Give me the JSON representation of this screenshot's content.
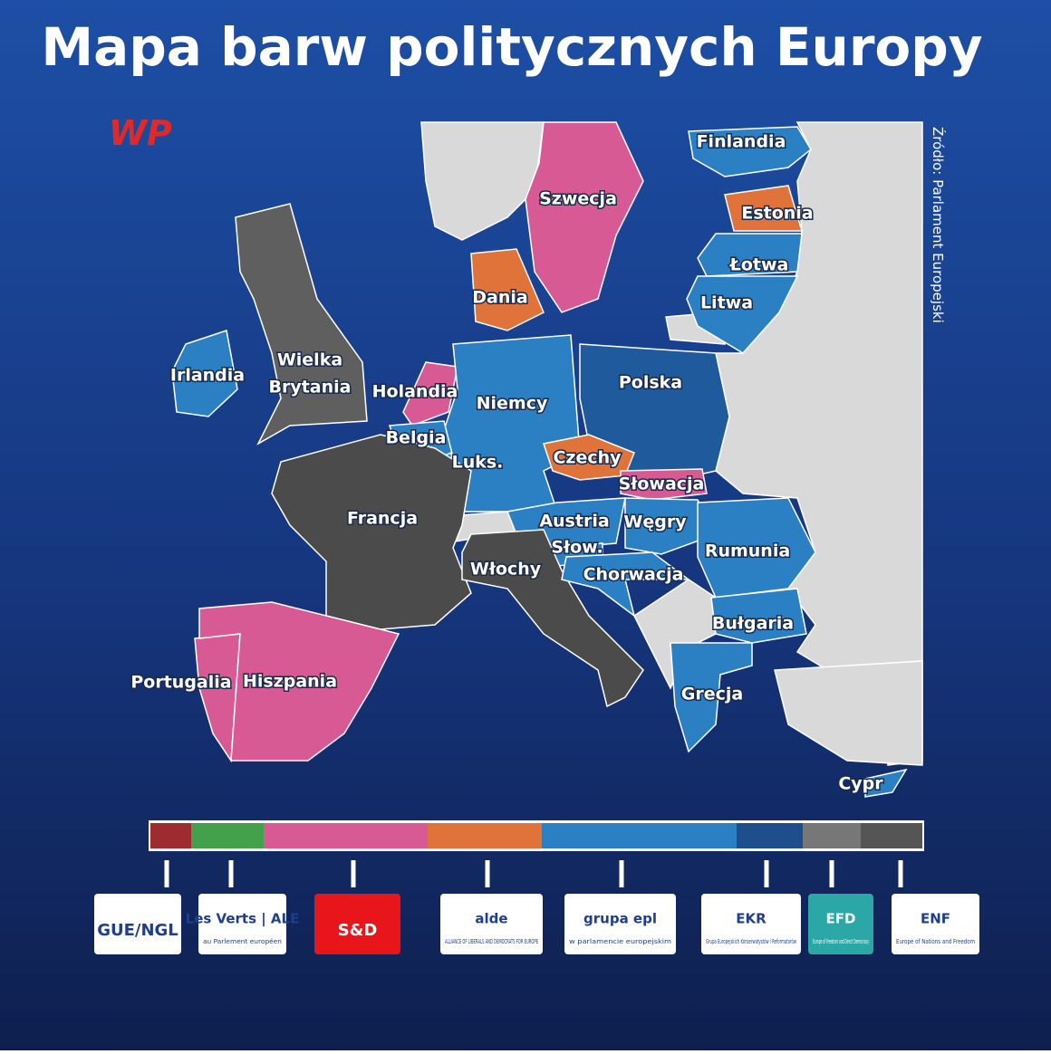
{
  "title": "Mapa barw politycznych Europy",
  "source": "Źródło: Parlament Europejski",
  "logo": "WP",
  "countries": [
    {
      "label": [
        "Finlandia"
      ],
      "color": "#2b80c3"
    },
    {
      "label": [
        "Szwecja"
      ],
      "color": "#d85a94"
    },
    {
      "label": [
        "Estonia"
      ],
      "color": "#e0733a"
    },
    {
      "label": [
        "Łotwa"
      ],
      "color": "#2b80c3"
    },
    {
      "label": [
        "Litwa"
      ],
      "color": "#2b80c3"
    },
    {
      "label": [
        "Dania"
      ],
      "color": "#e0733a"
    },
    {
      "label": [
        "Irlandia"
      ],
      "color": "#2b80c3"
    },
    {
      "label": [
        "Wielka",
        "Brytania"
      ],
      "color": "#5f5f5f"
    },
    {
      "label": [
        "Holandia"
      ],
      "color": "#d85a94"
    },
    {
      "label": [
        "Niemcy"
      ],
      "color": "#2b80c3"
    },
    {
      "label": [
        "Polska"
      ],
      "color": "#1f5a9c"
    },
    {
      "label": [
        "Belgia"
      ],
      "color": "#2b80c3"
    },
    {
      "label": [
        "Luks."
      ],
      "color": "#2b80c3"
    },
    {
      "label": [
        "Czechy"
      ],
      "color": "#e0733a"
    },
    {
      "label": [
        "Słowacja"
      ],
      "color": "#d85a94"
    },
    {
      "label": [
        "Francja"
      ],
      "color": "#4b4b4b"
    },
    {
      "label": [
        "Austria"
      ],
      "color": "#2b80c3"
    },
    {
      "label": [
        "Węgry"
      ],
      "color": "#2b80c3"
    },
    {
      "label": [
        "Słow."
      ],
      "color": "#2b80c3"
    },
    {
      "label": [
        "Rumunia"
      ],
      "color": "#2b80c3"
    },
    {
      "label": [
        "Włochy"
      ],
      "color": "#4b4b4b"
    },
    {
      "label": [
        "Chorwacja"
      ],
      "color": "#2b80c3"
    },
    {
      "label": [
        "Bułgaria"
      ],
      "color": "#2b80c3"
    },
    {
      "label": [
        "Portugalia"
      ],
      "color": "#d85a94"
    },
    {
      "label": [
        "Hiszpania"
      ],
      "color": "#d85a94"
    },
    {
      "label": [
        "Grecja"
      ],
      "color": "#2b80c3"
    },
    {
      "label": [
        "Cypr"
      ],
      "color": "#2b80c3"
    }
  ],
  "parties": [
    {
      "label": "GUE/NGL",
      "sub": "",
      "color": "#9e2b2f"
    },
    {
      "label": "Les Verts | ALE",
      "sub": "au Parlement européen",
      "color": "#43a04b"
    },
    {
      "label": "S&D",
      "sub": "",
      "color": "#d85a94"
    },
    {
      "label": "alde",
      "sub": "ALLIANCE OF LIBERALS AND DEMOCRATS FOR EUROPE",
      "color": "#e0733a"
    },
    {
      "label": "grupa epl",
      "sub": "w parlamencie europejskim",
      "color": "#2b80c3"
    },
    {
      "label": "EKR",
      "sub": "Grupa Europejskich Konserwatystów i Reformatorów",
      "color": "#1f4e8c"
    },
    {
      "label": "EFD",
      "sub": "Europe of Freedom and Direct Democracy",
      "color": "#777777"
    },
    {
      "label": "ENF",
      "sub": "Europe of Nations and Freedom",
      "color": "#555555"
    }
  ]
}
